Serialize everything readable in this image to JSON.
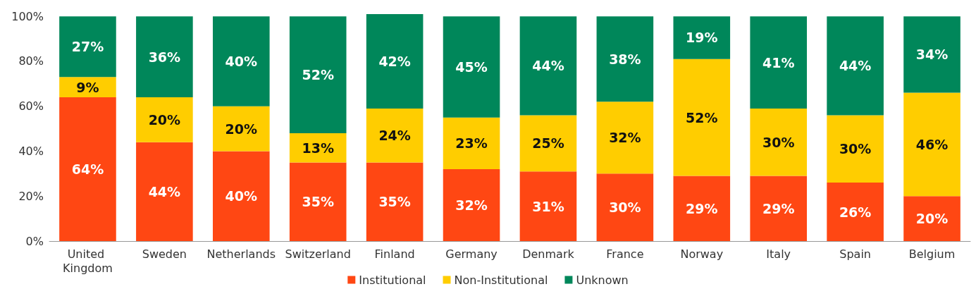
{
  "chart_data": {
    "type": "bar",
    "stacked": true,
    "categories": [
      "United Kingdom",
      "Sweden",
      "Netherlands",
      "Switzerland",
      "Finland",
      "Germany",
      "Denmark",
      "France",
      "Norway",
      "Italy",
      "Spain",
      "Belgium"
    ],
    "series": [
      {
        "name": "Institutional",
        "color": "#ff4713",
        "values": [
          64,
          44,
          40,
          35,
          35,
          32,
          31,
          30,
          29,
          29,
          26,
          20
        ],
        "value_labels": [
          "64%",
          "44%",
          "40%",
          "35%",
          "35%",
          "32%",
          "31%",
          "30%",
          "29%",
          "29%",
          "26%",
          "20%"
        ]
      },
      {
        "name": "Non-Institutional",
        "color": "#ffcd00",
        "values": [
          9,
          20,
          20,
          13,
          24,
          23,
          25,
          32,
          52,
          30,
          30,
          46
        ],
        "value_labels": [
          "9%",
          "20%",
          "20%",
          "13%",
          "24%",
          "23%",
          "25%",
          "32%",
          "52%",
          "30%",
          "30%",
          "46%"
        ]
      },
      {
        "name": "Unknown",
        "color": "#00875a",
        "values": [
          27,
          36,
          40,
          52,
          42,
          45,
          44,
          38,
          19,
          41,
          44,
          34
        ],
        "value_labels": [
          "27%",
          "36%",
          "40%",
          "52%",
          "42%",
          "45%",
          "44%",
          "38%",
          "19%",
          "41%",
          "44%",
          "34%"
        ]
      }
    ],
    "ylim": [
      0,
      101
    ],
    "yticks": [
      {
        "value": 0,
        "label": "0%"
      },
      {
        "value": 20,
        "label": "20%"
      },
      {
        "value": 40,
        "label": "40%"
      },
      {
        "value": 60,
        "label": "60%"
      },
      {
        "value": 80,
        "label": "80%"
      },
      {
        "value": 100,
        "label": "100%"
      }
    ],
    "grid": false,
    "legend": "bottom"
  }
}
